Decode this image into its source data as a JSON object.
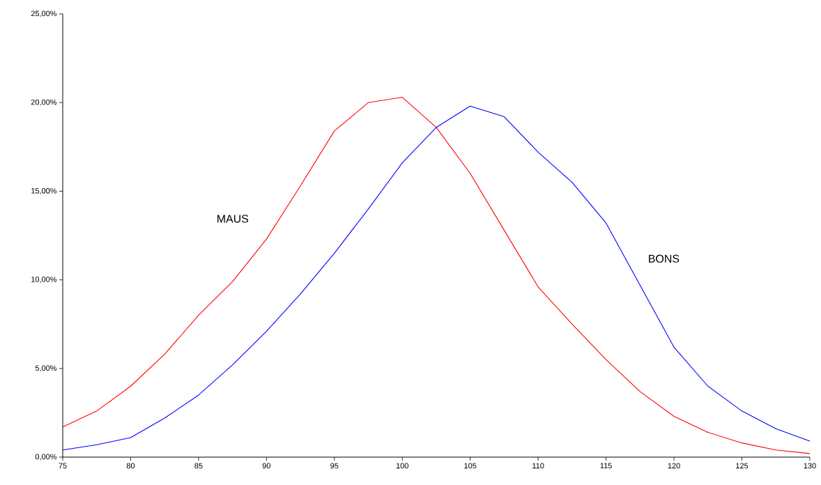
{
  "chart_data": {
    "type": "line",
    "x": [
      75,
      77.5,
      80,
      82.5,
      85,
      87.5,
      90,
      92.5,
      95,
      97.5,
      100,
      102.5,
      105,
      107.5,
      110,
      112.5,
      115,
      117.5,
      120,
      122.5,
      125,
      127.5,
      130
    ],
    "series": [
      {
        "name": "MAUS",
        "color": "#ff0000",
        "values": [
          1.7,
          2.6,
          4.0,
          5.8,
          8.0,
          9.9,
          12.3,
          15.3,
          18.4,
          20.0,
          20.3,
          18.6,
          16.0,
          12.8,
          9.6,
          7.5,
          5.5,
          3.7,
          2.3,
          1.4,
          0.8,
          0.4,
          0.2
        ]
      },
      {
        "name": "BONS",
        "color": "#0000ff",
        "values": [
          0.4,
          0.7,
          1.1,
          2.2,
          3.5,
          5.2,
          7.1,
          9.2,
          11.5,
          14.0,
          16.6,
          18.6,
          19.8,
          19.2,
          17.2,
          15.5,
          13.2,
          9.7,
          6.2,
          4.0,
          2.6,
          1.6,
          0.9
        ]
      }
    ],
    "xlim": [
      75,
      130
    ],
    "xticks": [
      75,
      80,
      85,
      90,
      95,
      100,
      105,
      110,
      115,
      120,
      125,
      130
    ],
    "ylim": [
      0,
      25
    ],
    "yticks": [
      {
        "value": 0,
        "label": "0,00%"
      },
      {
        "value": 5,
        "label": "5,00%"
      },
      {
        "value": 10,
        "label": "10,00%"
      },
      {
        "value": 15,
        "label": "15,00%"
      },
      {
        "value": 20,
        "label": "20,00%"
      },
      {
        "value": 25,
        "label": "25,00%"
      }
    ],
    "grid": false,
    "legend": false,
    "marker": "none",
    "line_style": "solid"
  }
}
